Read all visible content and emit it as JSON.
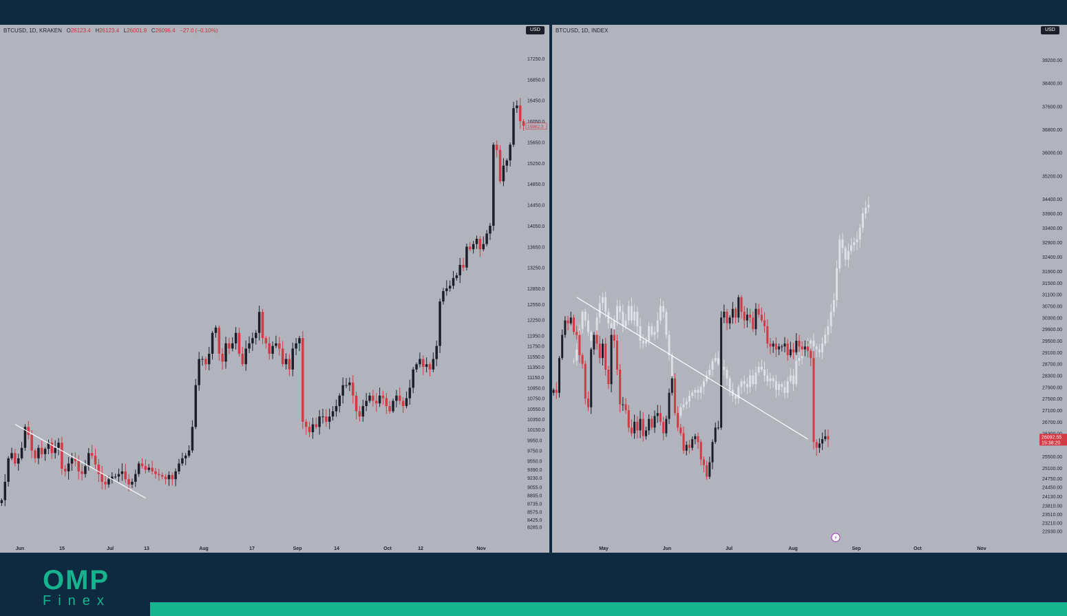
{
  "colors": {
    "up": "#1c1f2a",
    "down": "#d23a44",
    "background": "#b1b3bd",
    "ghost": "#dfe0e5",
    "trendline": "#ffffff",
    "brand": "#17b38f"
  },
  "logo": {
    "top": "OMP",
    "bottom": "Finex"
  },
  "left_header": {
    "symbol": "BTCUSD, 1D, KRAKEN",
    "o_label": "O",
    "o": "26123.4",
    "h_label": "H",
    "h": "26123.4",
    "l_label": "L",
    "l": "26001.8",
    "c_label": "C",
    "c": "26096.4",
    "chg": "−27.0 (−0.10%)"
  },
  "right_header": {
    "symbol": "BTCUSD, 1D, INDEX"
  },
  "currency": "USD",
  "chart_data": [
    {
      "type": "candlestick",
      "title": "BTCUSD, 1D, KRAKEN",
      "ylim": [
        8150,
        17500
      ],
      "y_ticks": [
        17250.0,
        16850.0,
        16450.0,
        16050.0,
        15650.0,
        15250.0,
        14850.0,
        14450.0,
        14050.0,
        13650.0,
        13250.0,
        12850.0,
        12550.0,
        12250.0,
        11950.0,
        11750.0,
        11550.0,
        11350.0,
        11150.0,
        10950.0,
        10750.0,
        10550.0,
        10350.0,
        10150.0,
        9950.0,
        9750.0,
        9550.0,
        9390.0,
        9230.0,
        9055.0,
        8895.0,
        8735.0,
        8575.0,
        8425.0,
        8285.0
      ],
      "x_ticks": [
        "Jun",
        "15",
        "Jul",
        "13",
        "Aug",
        "17",
        "Sep",
        "14",
        "Oct",
        "12",
        "Nov"
      ],
      "last_price_label": "15962.3",
      "last_price": 15962,
      "trend": {
        "from": [
          4,
          10250
        ],
        "to": [
          43,
          8840
        ]
      },
      "trend_note": "from/to = [candle index, price]",
      "closes": [
        8800,
        9150,
        9600,
        9700,
        9500,
        9600,
        9800,
        10200,
        10050,
        9750,
        9600,
        9800,
        9680,
        9780,
        9900,
        9700,
        9800,
        9900,
        9400,
        9350,
        9500,
        9600,
        9550,
        9350,
        9300,
        9450,
        9700,
        9650,
        9480,
        9300,
        9150,
        9100,
        9200,
        9250,
        9250,
        9300,
        9350,
        9200,
        9100,
        9150,
        9300,
        9500,
        9450,
        9380,
        9420,
        9350,
        9300,
        9280,
        9250,
        9200,
        9280,
        9200,
        9350,
        9500,
        9600,
        9650,
        9750,
        10200,
        11000,
        11500,
        11500,
        11400,
        11600,
        12000,
        12100,
        11600,
        11450,
        11800,
        11700,
        11800,
        12000,
        11600,
        11400,
        11700,
        11800,
        11900,
        12000,
        12400,
        11900,
        11800,
        11600,
        11750,
        11800,
        11700,
        11400,
        11500,
        11300,
        11700,
        11800,
        11900,
        10300,
        10200,
        10100,
        10250,
        10200,
        10400,
        10400,
        10300,
        10400,
        10500,
        10600,
        10800,
        11000,
        11000,
        11050,
        10800,
        10500,
        10400,
        10600,
        10700,
        10800,
        10700,
        10650,
        10800,
        10750,
        10600,
        10500,
        10700,
        10800,
        10700,
        10600,
        10750,
        10950,
        11300,
        11400,
        11500,
        11350,
        11400,
        11300,
        11500,
        11750,
        12600,
        12800,
        12850,
        12900,
        13050,
        13100,
        13300,
        13250,
        13650,
        13600,
        13700,
        13800,
        13600,
        13700,
        13900,
        14050,
        15600,
        15500,
        14900,
        15200,
        15300,
        15600,
        16300,
        16350,
        16050,
        15962
      ]
    },
    {
      "type": "candlestick",
      "title": "BTCUSD, 1D, INDEX",
      "ylim": [
        22700,
        39700
      ],
      "y_ticks": [
        39200.0,
        38400.0,
        37600.0,
        36800.0,
        36000.0,
        35200.0,
        34400.0,
        33900.0,
        33400.0,
        32900.0,
        32400.0,
        31900.0,
        31500.0,
        31100.0,
        30700.0,
        30300.0,
        29900.0,
        29500.0,
        29100.0,
        28700.0,
        28300.0,
        27900.0,
        27500.0,
        27100.0,
        26700.0,
        26300.0,
        25500.0,
        25100.0,
        24750.0,
        24450.0,
        24130.0,
        23810.0,
        23510.0,
        23210.0,
        22930.0
      ],
      "x_ticks": [
        "May",
        "Jun",
        "Jul",
        "Aug",
        "Sep",
        "Oct",
        "Nov"
      ],
      "last_price_label": "26092.55",
      "countdown_label": "15:38:20",
      "last_price": 26092,
      "trend": {
        "from": [
          8,
          31000
        ],
        "to": [
          88,
          26100
        ]
      },
      "trend_note": "from/to = [candle index, price]",
      "closes": [
        27800,
        27700,
        28900,
        29700,
        30200,
        30100,
        30300,
        29800,
        29700,
        29000,
        28700,
        27500,
        27200,
        29200,
        29700,
        29400,
        28900,
        29400,
        28500,
        28000,
        29700,
        29500,
        28500,
        27300,
        27300,
        27100,
        26500,
        26300,
        26700,
        26400,
        26800,
        26200,
        26400,
        26800,
        26500,
        26900,
        27000,
        26700,
        26300,
        26800,
        27700,
        28200,
        27000,
        26500,
        26300,
        25700,
        25900,
        25800,
        26100,
        26200,
        26000,
        25400,
        25200,
        24800,
        25300,
        26000,
        26500,
        26500,
        30300,
        30500,
        30100,
        30300,
        30600,
        30300,
        31000,
        30500,
        30200,
        30400,
        30300,
        29900,
        30600,
        30400,
        30200,
        30000,
        29400,
        29300,
        29400,
        29200,
        29300,
        29300,
        29400,
        29000,
        29200,
        29100,
        29500,
        29300,
        29200,
        29300,
        29150,
        28900,
        26000,
        25800,
        25950,
        26100,
        26200,
        26092
      ],
      "ghost_note": "projection of a prior leg overlaid on the chart",
      "ghost_offset": 7,
      "ghost_closes": [
        28800,
        29200,
        29900,
        30500,
        30200,
        29800,
        29500,
        29700,
        30300,
        30800,
        31000,
        30500,
        30100,
        29900,
        30200,
        30700,
        30500,
        30000,
        30200,
        30700,
        30200,
        30500,
        30000,
        29500,
        29400,
        29500,
        30000,
        29700,
        29800,
        30200,
        30700,
        30500,
        29700,
        29000,
        27800,
        27000,
        26900,
        27200,
        27300,
        27400,
        27600,
        27700,
        27800,
        27700,
        27900,
        28100,
        28300,
        28500,
        28800,
        28900,
        28700,
        28600,
        28500,
        28200,
        27800,
        27600,
        27500,
        27900,
        28100,
        28000,
        27900,
        28300,
        28000,
        28400,
        28600,
        28500,
        28300,
        28100,
        28200,
        28100,
        27800,
        28000,
        27900,
        27700,
        28100,
        28300,
        28000,
        28800,
        28900,
        29200,
        29300,
        29400,
        29500,
        29300,
        29200,
        29100,
        29400,
        29700,
        30000,
        30500,
        30900,
        32000,
        33000,
        32700,
        32300,
        32600,
        32800,
        32900,
        33000,
        33400,
        33900,
        34100,
        34200
      ]
    }
  ]
}
